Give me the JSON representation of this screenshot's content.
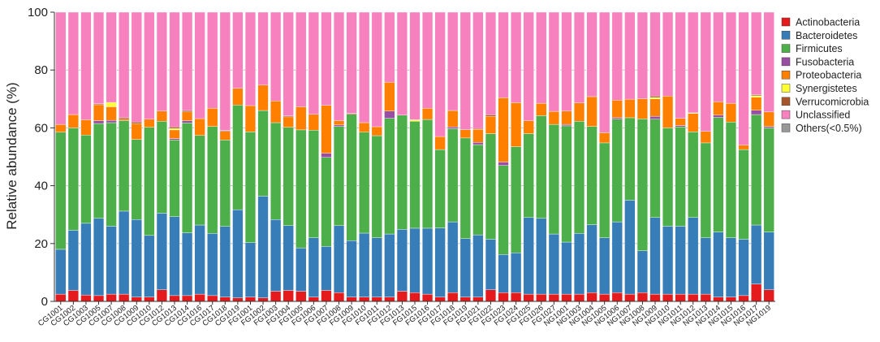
{
  "chart_data": {
    "type": "bar",
    "stacked": true,
    "title": "",
    "xlabel": "",
    "ylabel": "Relative abundance (%)",
    "ylim": [
      0,
      100
    ],
    "yticks": [
      0,
      20,
      40,
      60,
      80,
      100
    ],
    "grid": true,
    "legend_position": "right",
    "categories": [
      "CG1001",
      "CG1002",
      "CG1003",
      "CG1005",
      "CG1007",
      "CG1008",
      "CG1009",
      "CG1010",
      "CG1012",
      "CG1013",
      "CG1014",
      "CG1016",
      "CG1017",
      "CG1018",
      "CG1019",
      "FG1001",
      "FG1002",
      "FG1003",
      "FG1004",
      "FG1005",
      "FG1006",
      "FG1007",
      "FG1008",
      "FG1009",
      "FG1010",
      "FG1011",
      "FG1012",
      "FG1013",
      "FG1015",
      "FG1016",
      "FG1017",
      "FG1018",
      "FG1019",
      "FG1021",
      "FG1022",
      "FG1023",
      "FG1024",
      "FG1025",
      "FG1026",
      "FG1027",
      "NG1001",
      "NG1003",
      "NG1004",
      "NG1005",
      "NG1006",
      "NG1007",
      "NG1008",
      "NG1009",
      "NG1010",
      "NG1011",
      "NG1012",
      "NG1013",
      "NG1014",
      "NG1015",
      "NG1016",
      "NG1017",
      "NG1019"
    ],
    "series": [
      {
        "name": "Actinobacteria",
        "color": "#e41a1c",
        "values": [
          2.5,
          3.8,
          2.2,
          2.0,
          2.5,
          2.5,
          1.5,
          1.5,
          4.0,
          2.0,
          2.0,
          2.5,
          2.0,
          1.5,
          1.2,
          1.5,
          1.2,
          3.5,
          3.8,
          3.5,
          1.5,
          3.8,
          3.0,
          1.5,
          1.5,
          1.5,
          1.5,
          3.5,
          3.0,
          2.5,
          1.5,
          3.0,
          1.5,
          1.5,
          4.0,
          3.0,
          3.0,
          2.5,
          2.5,
          2.5,
          2.5,
          2.5,
          3.0,
          2.5,
          3.0,
          2.5,
          3.0,
          2.5,
          2.5,
          2.5,
          2.5,
          2.5,
          1.5,
          1.5,
          2.0,
          6.0,
          4.0
        ]
      },
      {
        "name": "Bacteroidetes",
        "color": "#377eb8",
        "values": [
          15.5,
          20.8,
          24.8,
          26.7,
          23.5,
          28.7,
          26.8,
          21.3,
          26.5,
          27.3,
          21.7,
          23.9,
          21.5,
          24.4,
          30.5,
          18.8,
          35.2,
          24.8,
          22.4,
          15.0,
          20.5,
          15.2,
          23.2,
          19.5,
          22.1,
          20.5,
          21.8,
          21.4,
          22.3,
          22.8,
          23.9,
          24.5,
          20.2,
          21.5,
          17.5,
          13.2,
          13.8,
          26.5,
          26.2,
          20.8,
          18.0,
          21.0,
          23.5,
          19.5,
          24.5,
          32.5,
          14.5,
          26.5,
          23.5,
          23.5,
          26.5,
          19.5,
          22.5,
          20.5,
          19.5,
          20.4,
          20.0
        ]
      },
      {
        "name": "Firmicutes",
        "color": "#4daf4a",
        "values": [
          40.5,
          35.4,
          30.5,
          32.8,
          35.8,
          31.3,
          27.7,
          37.4,
          31.8,
          26.5,
          38.0,
          31.0,
          37.0,
          29.9,
          36.2,
          38.3,
          29.6,
          33.5,
          34.0,
          40.8,
          37.2,
          30.8,
          34.3,
          43.7,
          34.9,
          35.3,
          40.0,
          39.5,
          37.0,
          37.6,
          27.1,
          32.2,
          34.8,
          31.2,
          36.5,
          30.8,
          36.7,
          29.0,
          35.5,
          37.9,
          40.2,
          38.8,
          34.0,
          32.8,
          35.5,
          28.5,
          45.6,
          34.0,
          34.0,
          34.3,
          29.6,
          32.8,
          39.6,
          40.0,
          31.0,
          38.2,
          36.0
        ]
      },
      {
        "name": "Fusobacteria",
        "color": "#984ea3",
        "values": [
          0,
          0,
          0,
          1.0,
          0.8,
          0,
          0,
          0,
          0,
          0.5,
          0.8,
          0,
          0,
          0,
          0,
          0,
          0,
          0,
          0,
          0,
          0,
          1.4,
          0.5,
          0,
          0,
          0,
          2.5,
          0,
          0,
          0,
          0,
          0.6,
          0,
          0.8,
          0,
          1.2,
          0,
          0,
          0,
          0,
          0.5,
          0,
          0,
          0,
          0.5,
          0,
          0,
          1.0,
          0,
          0.5,
          0,
          0,
          0.8,
          0,
          0,
          1.5,
          0.5
        ]
      },
      {
        "name": "Proteobacteria",
        "color": "#ff7f00",
        "values": [
          2.7,
          4.6,
          5.3,
          5.5,
          4.7,
          0.5,
          5.5,
          2.8,
          3.5,
          3.0,
          3.0,
          5.8,
          6.3,
          3.0,
          5.8,
          9.1,
          8.8,
          7.5,
          3.6,
          8.0,
          5.5,
          16.6,
          1.5,
          0,
          3.3,
          3.1,
          10.0,
          0,
          0,
          3.9,
          4.5,
          5.7,
          2.9,
          4.5,
          6.0,
          22.2,
          15.2,
          4.5,
          4.3,
          4.5,
          4.6,
          6.3,
          10.3,
          3.5,
          6.1,
          6.4,
          7.0,
          6.0,
          11.0,
          2.5,
          6.4,
          4.0,
          4.6,
          6.5,
          1.5,
          4.5,
          5.0
        ]
      },
      {
        "name": "Synergistetes",
        "color": "#ffff33",
        "values": [
          0,
          0,
          0,
          0,
          1.5,
          0,
          0,
          0,
          0,
          0.5,
          0,
          0,
          0,
          0,
          0,
          0,
          0,
          0,
          0,
          0,
          0,
          0,
          0,
          0,
          0,
          0,
          0,
          0,
          0.5,
          0,
          0,
          0,
          0,
          0,
          0,
          0,
          0,
          0,
          0,
          0,
          0,
          0,
          0,
          0,
          0,
          0,
          0,
          0.5,
          0,
          0,
          0.2,
          0,
          0,
          0,
          0,
          0.5,
          0
        ]
      },
      {
        "name": "Verrucomicrobia",
        "color": "#a65628",
        "values": [
          0,
          0,
          0,
          0.3,
          0,
          0.5,
          0.5,
          0,
          0,
          0.5,
          0.5,
          0,
          0,
          0.3,
          0,
          0,
          0,
          0,
          0.3,
          0,
          0,
          0,
          0,
          0.3,
          0,
          0,
          0,
          0,
          0,
          0,
          0,
          0,
          0,
          0.3,
          0.5,
          0,
          0,
          0,
          0,
          0,
          0,
          0,
          0,
          0,
          0,
          0,
          0,
          0.5,
          0,
          0,
          0,
          0,
          0,
          0,
          0,
          0.4,
          0
        ]
      },
      {
        "name": "Unclassified",
        "color": "#f781bf",
        "values": [
          38.8,
          35.4,
          37.2,
          31.7,
          31.2,
          36.5,
          38.0,
          37.0,
          34.2,
          39.7,
          34.0,
          36.8,
          33.2,
          40.9,
          26.3,
          32.3,
          25.2,
          30.7,
          35.9,
          32.7,
          35.3,
          32.2,
          37.5,
          35.0,
          38.2,
          39.6,
          24.2,
          35.6,
          37.2,
          33.2,
          43.0,
          34.0,
          40.6,
          40.2,
          35.5,
          29.6,
          31.3,
          37.5,
          31.5,
          34.3,
          34.2,
          31.4,
          29.2,
          41.7,
          30.4,
          30.1,
          29.9,
          29.0,
          29.0,
          36.7,
          34.8,
          41.2,
          31.0,
          31.5,
          46.0,
          28.5,
          34.5
        ]
      },
      {
        "name": "Others(<0.5%)",
        "color": "#999999",
        "values": [
          0,
          0,
          0,
          0,
          0,
          0,
          0,
          0,
          0,
          0,
          0,
          0,
          0,
          0,
          0,
          0,
          0,
          0,
          0,
          0,
          0,
          0,
          0,
          0,
          0,
          0,
          0,
          0,
          0,
          0,
          0,
          0,
          0,
          0,
          0,
          0,
          0,
          0,
          0,
          0,
          0,
          0,
          0,
          0,
          0,
          0,
          0,
          0,
          0,
          0,
          0,
          0,
          0,
          0,
          0,
          0,
          0
        ]
      }
    ]
  }
}
